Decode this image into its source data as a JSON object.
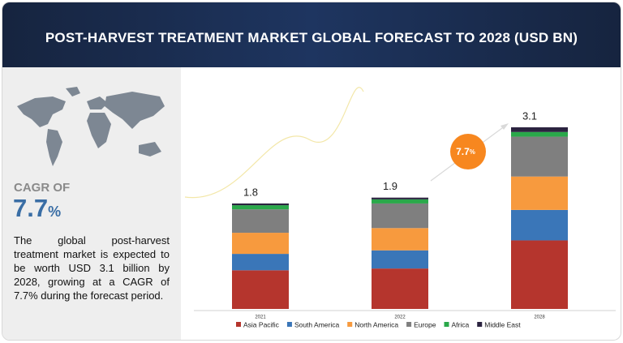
{
  "header": {
    "title": "POST-HARVEST TREATMENT MARKET GLOBAL FORECAST TO 2028 (USD BN)"
  },
  "sidebar": {
    "cagr_label": "CAGR OF",
    "cagr_value": "7.7",
    "cagr_unit": "%",
    "description": "The global post-harvest treatment market is expected to be worth USD 3.1 billion by 2028, growing at a CAGR of 7.7% during the forecast period."
  },
  "chart_data": {
    "type": "bar",
    "stacked": true,
    "categories": [
      "2021",
      "2022",
      "2028"
    ],
    "series": [
      {
        "name": "Asia Pacific",
        "color": "#b5352d",
        "values": [
          0.66,
          0.69,
          1.17
        ]
      },
      {
        "name": "South America",
        "color": "#3a76b8",
        "values": [
          0.28,
          0.31,
          0.52
        ]
      },
      {
        "name": "North America",
        "color": "#f79a3e",
        "values": [
          0.36,
          0.38,
          0.57
        ]
      },
      {
        "name": "Europe",
        "color": "#7f7f7f",
        "values": [
          0.4,
          0.42,
          0.68
        ]
      },
      {
        "name": "Africa",
        "color": "#2aa84a",
        "values": [
          0.07,
          0.07,
          0.08
        ]
      },
      {
        "name": "Middle East",
        "color": "#2b2340",
        "values": [
          0.03,
          0.03,
          0.08
        ]
      }
    ],
    "totals": [
      1.8,
      1.9,
      3.1
    ],
    "badge": {
      "value": "7.7",
      "unit": "%"
    }
  }
}
